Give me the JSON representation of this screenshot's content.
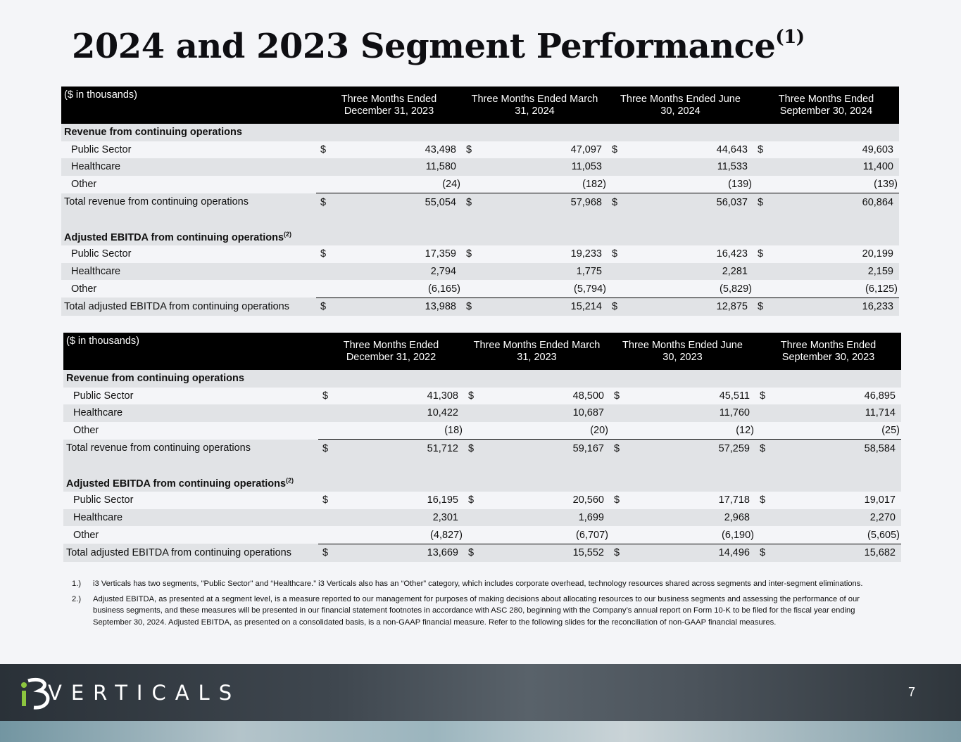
{
  "title": "2024 and 2023 Segment Performance",
  "title_superscript": "(1)",
  "tables": [
    {
      "units": "($ in thousands)",
      "periods": [
        "Three Months Ended December 31, 2023",
        "Three Months Ended March 31, 2024",
        "Three Months Ended June 30, 2024",
        "Three Months Ended September 30, 2024"
      ],
      "revenue_heading": "Revenue from continuing operations",
      "revenue_rows": [
        {
          "label": "Public Sector",
          "currency": "$",
          "values": [
            "43,498",
            "47,097",
            "44,643",
            "49,603"
          ]
        },
        {
          "label": "Healthcare",
          "currency": "",
          "values": [
            "11,580",
            "11,053",
            "11,533",
            "11,400"
          ]
        },
        {
          "label": "Other",
          "currency": "",
          "values": [
            "(24)",
            "(182)",
            "(139)",
            "(139)"
          ]
        }
      ],
      "revenue_total": {
        "label": "Total revenue from continuing operations",
        "currency": "$",
        "values": [
          "55,054",
          "57,968",
          "56,037",
          "60,864"
        ]
      },
      "ebitda_heading": "Adjusted EBITDA from continuing operations",
      "ebitda_superscript": "(2)",
      "ebitda_rows": [
        {
          "label": "Public Sector",
          "currency": "$",
          "values": [
            "17,359",
            "19,233",
            "16,423",
            "20,199"
          ]
        },
        {
          "label": "Healthcare",
          "currency": "",
          "values": [
            "2,794",
            "1,775",
            "2,281",
            "2,159"
          ]
        },
        {
          "label": "Other",
          "currency": "",
          "values": [
            "(6,165)",
            "(5,794)",
            "(5,829)",
            "(6,125)"
          ]
        }
      ],
      "ebitda_total": {
        "label": "Total adjusted EBITDA from continuing operations",
        "currency": "$",
        "values": [
          "13,988",
          "15,214",
          "12,875",
          "16,233"
        ]
      }
    },
    {
      "units": "($ in thousands)",
      "periods": [
        "Three Months Ended December 31, 2022",
        "Three Months Ended March 31, 2023",
        "Three Months Ended June 30, 2023",
        "Three Months Ended September 30, 2023"
      ],
      "revenue_heading": "Revenue from continuing operations",
      "revenue_rows": [
        {
          "label": "Public Sector",
          "currency": "$",
          "values": [
            "41,308",
            "48,500",
            "45,511",
            "46,895"
          ]
        },
        {
          "label": "Healthcare",
          "currency": "",
          "values": [
            "10,422",
            "10,687",
            "11,760",
            "11,714"
          ]
        },
        {
          "label": "Other",
          "currency": "",
          "values": [
            "(18)",
            "(20)",
            "(12)",
            "(25)"
          ]
        }
      ],
      "revenue_total": {
        "label": "Total revenue from continuing operations",
        "currency": "$",
        "values": [
          "51,712",
          "59,167",
          "57,259",
          "58,584"
        ]
      },
      "ebitda_heading": "Adjusted EBITDA from continuing operations",
      "ebitda_superscript": "(2)",
      "ebitda_rows": [
        {
          "label": "Public Sector",
          "currency": "$",
          "values": [
            "16,195",
            "20,560",
            "17,718",
            "19,017"
          ]
        },
        {
          "label": "Healthcare",
          "currency": "",
          "values": [
            "2,301",
            "1,699",
            "2,968",
            "2,270"
          ]
        },
        {
          "label": "Other",
          "currency": "",
          "values": [
            "(4,827)",
            "(6,707)",
            "(6,190)",
            "(5,605)"
          ]
        }
      ],
      "ebitda_total": {
        "label": "Total adjusted EBITDA from continuing operations",
        "currency": "$",
        "values": [
          "13,669",
          "15,552",
          "14,496",
          "15,682"
        ]
      }
    }
  ],
  "footnotes": [
    {
      "num": "1.)",
      "text": "i3 Verticals has two segments, \"Public Sector\" and “Healthcare.”  i3 Verticals also has an “Other” category, which includes corporate overhead, technology resources shared across segments and inter-segment eliminations."
    },
    {
      "num": "2.)",
      "text": "Adjusted EBITDA, as presented at a segment level, is a measure reported to our management for purposes of making decisions about allocating resources to our business segments and assessing the performance of our business segments, and these measures will be presented in our financial statement footnotes in accordance with ASC 280, beginning with the Company’s annual report on Form 10-K to be filed for the fiscal year ending September 30, 2024. Adjusted EBITDA, as presented on a consolidated basis, is a non-GAAP financial measure. Refer to the following slides for the reconciliation of non-GAAP financial measures."
    }
  ],
  "footer": {
    "brand": "VERTICALS",
    "logo_icon": "i3-logo-icon",
    "page_number": "7",
    "brand_color": "#8dc63f"
  }
}
